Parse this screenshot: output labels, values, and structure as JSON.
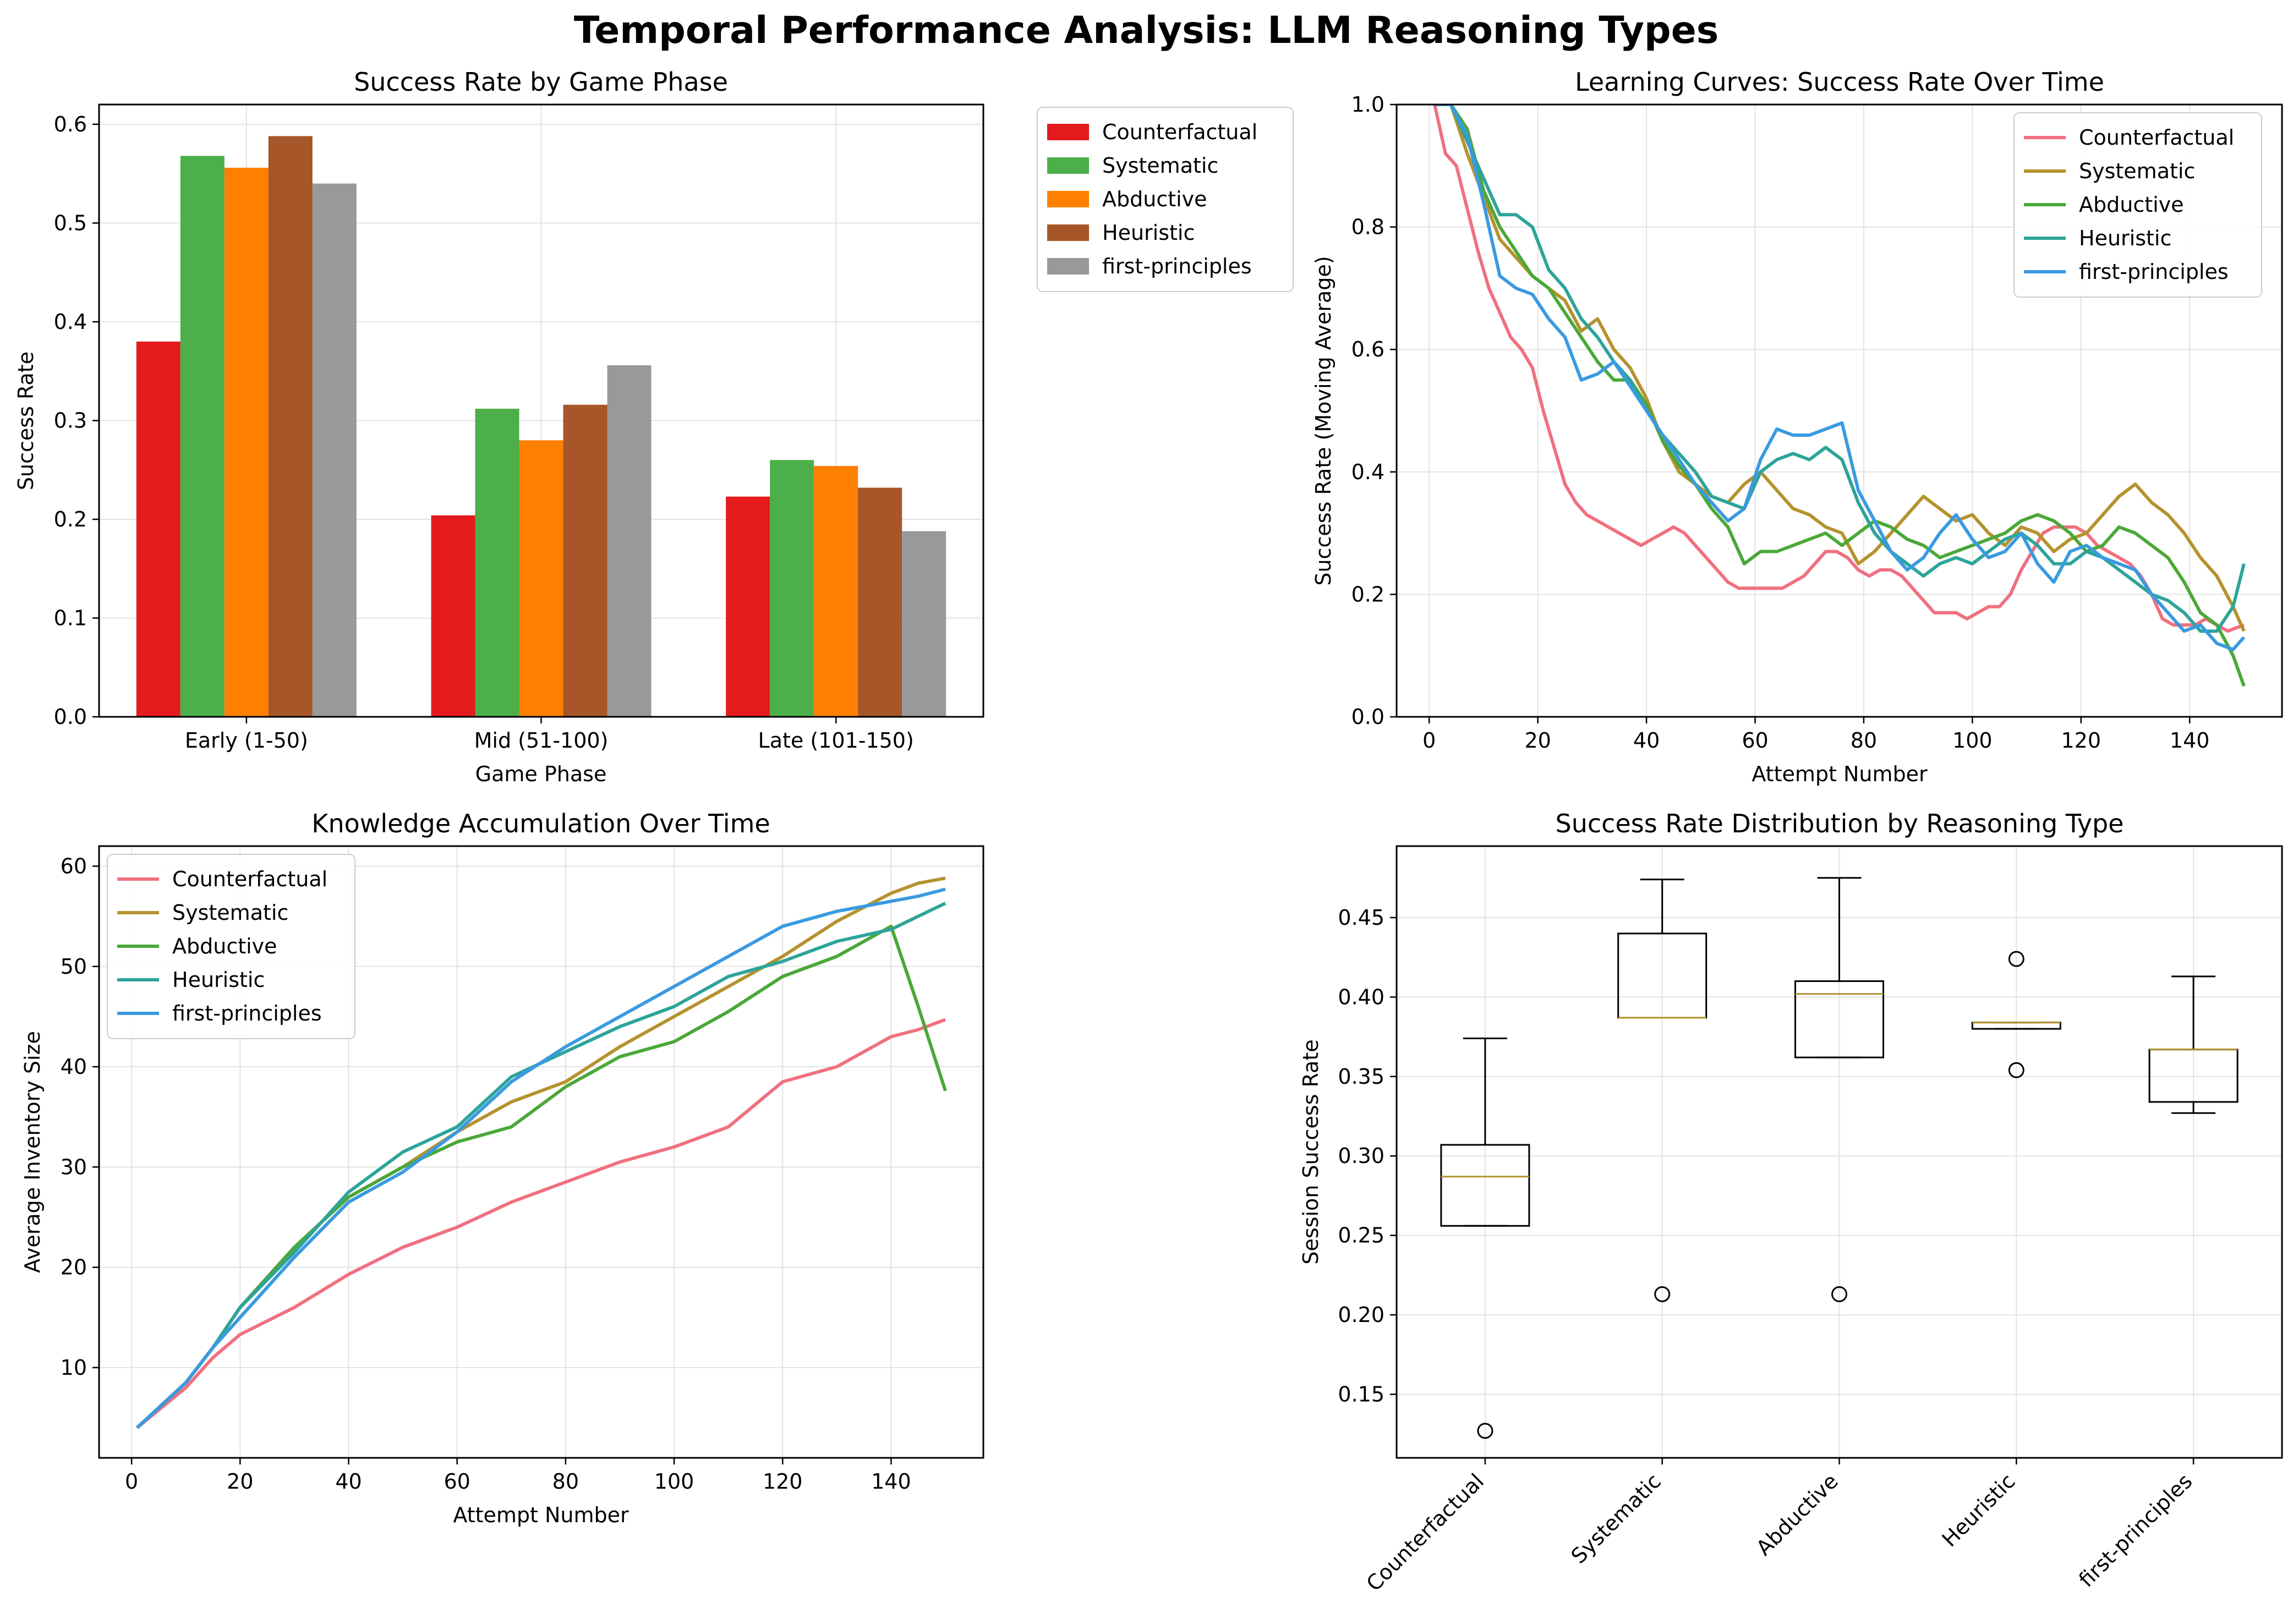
{
  "figure_title": "Temporal Performance Analysis: LLM Reasoning Types",
  "chart_data": [
    {
      "type": "bar",
      "title": "Success Rate by Game Phase",
      "xlabel": "Game Phase",
      "ylabel": "Success Rate",
      "categories": [
        "Early (1-50)",
        "Mid (51-100)",
        "Late (101-150)"
      ],
      "ylim": [
        0,
        0.62
      ],
      "yticks": [
        0.0,
        0.1,
        0.2,
        0.3,
        0.4,
        0.5,
        0.6
      ],
      "grid": true,
      "legend_position": "outside-right",
      "series": [
        {
          "name": "Counterfactual",
          "color": "#e41a1c",
          "values": [
            0.38,
            0.204,
            0.223
          ]
        },
        {
          "name": "Systematic",
          "color": "#4daf4a",
          "values": [
            0.568,
            0.312,
            0.26
          ]
        },
        {
          "name": "Abductive",
          "color": "#ff7f00",
          "values": [
            0.556,
            0.28,
            0.254
          ]
        },
        {
          "name": "Heuristic",
          "color": "#a65628",
          "values": [
            0.588,
            0.316,
            0.232
          ]
        },
        {
          "name": "first-principles",
          "color": "#999999",
          "values": [
            0.54,
            0.356,
            0.188
          ]
        }
      ]
    },
    {
      "type": "line",
      "title": "Learning Curves: Success Rate Over Time",
      "xlabel": "Attempt Number",
      "ylabel": "Success Rate (Moving Average)",
      "xlim": [
        -6,
        157
      ],
      "ylim": [
        0,
        1.0
      ],
      "xticks": [
        0,
        20,
        40,
        60,
        80,
        100,
        120,
        140
      ],
      "yticks": [
        0.0,
        0.2,
        0.4,
        0.6,
        0.8,
        1.0
      ],
      "grid": true,
      "legend_position": "top-right",
      "series": [
        {
          "name": "Counterfactual",
          "color": "#f0707f",
          "x": [
            1,
            3,
            5,
            7,
            9,
            11,
            13,
            15,
            17,
            19,
            21,
            23,
            25,
            27,
            29,
            31,
            33,
            35,
            37,
            39,
            41,
            43,
            45,
            47,
            49,
            51,
            53,
            55,
            57,
            59,
            61,
            63,
            65,
            67,
            69,
            71,
            73,
            75,
            77,
            79,
            81,
            83,
            85,
            87,
            89,
            91,
            93,
            95,
            97,
            99,
            101,
            103,
            105,
            107,
            109,
            111,
            113,
            115,
            117,
            119,
            121,
            123,
            125,
            127,
            129,
            131,
            133,
            135,
            137,
            139,
            141,
            143,
            145,
            147,
            150
          ],
          "y": [
            1.0,
            0.92,
            0.9,
            0.83,
            0.76,
            0.7,
            0.66,
            0.62,
            0.6,
            0.57,
            0.5,
            0.44,
            0.38,
            0.35,
            0.33,
            0.32,
            0.31,
            0.3,
            0.29,
            0.28,
            0.29,
            0.3,
            0.31,
            0.3,
            0.28,
            0.26,
            0.24,
            0.22,
            0.21,
            0.21,
            0.21,
            0.21,
            0.21,
            0.22,
            0.23,
            0.25,
            0.27,
            0.27,
            0.26,
            0.24,
            0.23,
            0.24,
            0.24,
            0.23,
            0.21,
            0.19,
            0.17,
            0.17,
            0.17,
            0.16,
            0.17,
            0.18,
            0.18,
            0.2,
            0.24,
            0.27,
            0.3,
            0.31,
            0.31,
            0.31,
            0.3,
            0.28,
            0.27,
            0.26,
            0.25,
            0.23,
            0.2,
            0.16,
            0.15,
            0.15,
            0.15,
            0.16,
            0.15,
            0.14,
            0.15
          ]
        },
        {
          "name": "Systematic",
          "color": "#b5922e",
          "x": [
            1,
            4,
            7,
            10,
            13,
            16,
            19,
            22,
            25,
            28,
            31,
            34,
            37,
            40,
            43,
            46,
            49,
            52,
            55,
            58,
            61,
            64,
            67,
            70,
            73,
            76,
            79,
            82,
            85,
            88,
            91,
            94,
            97,
            100,
            103,
            106,
            109,
            112,
            115,
            118,
            121,
            124,
            127,
            130,
            133,
            136,
            139,
            142,
            145,
            148,
            150
          ],
          "y": [
            1.0,
            1.0,
            0.92,
            0.85,
            0.78,
            0.75,
            0.72,
            0.7,
            0.68,
            0.63,
            0.65,
            0.6,
            0.57,
            0.52,
            0.45,
            0.4,
            0.38,
            0.36,
            0.35,
            0.38,
            0.4,
            0.37,
            0.34,
            0.33,
            0.31,
            0.3,
            0.25,
            0.27,
            0.3,
            0.33,
            0.36,
            0.34,
            0.32,
            0.33,
            0.3,
            0.28,
            0.31,
            0.3,
            0.27,
            0.29,
            0.3,
            0.33,
            0.36,
            0.38,
            0.35,
            0.33,
            0.3,
            0.26,
            0.23,
            0.18,
            0.14
          ]
        },
        {
          "name": "Abductive",
          "color": "#4aa838",
          "x": [
            1,
            4,
            7,
            10,
            13,
            16,
            19,
            22,
            25,
            28,
            31,
            34,
            37,
            40,
            43,
            46,
            49,
            52,
            55,
            58,
            61,
            64,
            67,
            70,
            73,
            76,
            79,
            82,
            85,
            88,
            91,
            94,
            97,
            100,
            103,
            106,
            109,
            112,
            115,
            118,
            121,
            124,
            127,
            130,
            133,
            136,
            139,
            142,
            145,
            148,
            150
          ],
          "y": [
            1.0,
            1.0,
            0.96,
            0.86,
            0.8,
            0.76,
            0.72,
            0.7,
            0.66,
            0.62,
            0.58,
            0.55,
            0.55,
            0.51,
            0.45,
            0.41,
            0.38,
            0.34,
            0.31,
            0.25,
            0.27,
            0.27,
            0.28,
            0.29,
            0.3,
            0.28,
            0.3,
            0.32,
            0.31,
            0.29,
            0.28,
            0.26,
            0.27,
            0.28,
            0.29,
            0.3,
            0.32,
            0.33,
            0.32,
            0.3,
            0.27,
            0.28,
            0.31,
            0.3,
            0.28,
            0.26,
            0.22,
            0.17,
            0.15,
            0.1,
            0.05
          ]
        },
        {
          "name": "Heuristic",
          "color": "#2da49a",
          "x": [
            1,
            4,
            7,
            10,
            13,
            16,
            19,
            22,
            25,
            28,
            31,
            34,
            37,
            40,
            43,
            46,
            49,
            52,
            55,
            58,
            61,
            64,
            67,
            70,
            73,
            76,
            79,
            82,
            85,
            88,
            91,
            94,
            97,
            100,
            103,
            106,
            109,
            112,
            115,
            118,
            121,
            124,
            127,
            130,
            133,
            136,
            139,
            142,
            145,
            148,
            150
          ],
          "y": [
            1.0,
            1.0,
            0.94,
            0.88,
            0.82,
            0.82,
            0.8,
            0.73,
            0.7,
            0.65,
            0.62,
            0.58,
            0.55,
            0.5,
            0.46,
            0.43,
            0.4,
            0.36,
            0.35,
            0.34,
            0.4,
            0.42,
            0.43,
            0.42,
            0.44,
            0.42,
            0.35,
            0.3,
            0.27,
            0.25,
            0.23,
            0.25,
            0.26,
            0.25,
            0.27,
            0.29,
            0.3,
            0.28,
            0.25,
            0.25,
            0.27,
            0.26,
            0.24,
            0.22,
            0.2,
            0.19,
            0.17,
            0.14,
            0.14,
            0.18,
            0.25
          ]
        },
        {
          "name": "first-principles",
          "color": "#3a9ae0",
          "x": [
            1,
            4,
            7,
            10,
            13,
            16,
            19,
            22,
            25,
            28,
            31,
            34,
            37,
            40,
            43,
            46,
            49,
            52,
            55,
            58,
            61,
            64,
            67,
            70,
            73,
            76,
            79,
            82,
            85,
            88,
            91,
            94,
            97,
            100,
            103,
            106,
            109,
            112,
            115,
            118,
            121,
            124,
            127,
            130,
            133,
            136,
            139,
            142,
            145,
            148,
            150
          ],
          "y": [
            1.0,
            1.0,
            0.95,
            0.84,
            0.72,
            0.7,
            0.69,
            0.65,
            0.62,
            0.55,
            0.56,
            0.58,
            0.54,
            0.5,
            0.46,
            0.42,
            0.38,
            0.35,
            0.32,
            0.34,
            0.42,
            0.47,
            0.46,
            0.46,
            0.47,
            0.48,
            0.37,
            0.32,
            0.27,
            0.24,
            0.26,
            0.3,
            0.33,
            0.29,
            0.26,
            0.27,
            0.3,
            0.25,
            0.22,
            0.27,
            0.28,
            0.26,
            0.25,
            0.24,
            0.2,
            0.17,
            0.14,
            0.15,
            0.12,
            0.11,
            0.13
          ]
        }
      ]
    },
    {
      "type": "line",
      "title": "Knowledge Accumulation Over Time",
      "xlabel": "Attempt Number",
      "ylabel": "Average Inventory Size",
      "xlim": [
        -6,
        157
      ],
      "ylim": [
        1,
        62
      ],
      "xticks": [
        0,
        20,
        40,
        60,
        80,
        100,
        120,
        140
      ],
      "yticks": [
        10,
        20,
        30,
        40,
        50,
        60
      ],
      "grid": true,
      "legend_position": "top-left",
      "series": [
        {
          "name": "Counterfactual",
          "color": "#f0707f",
          "x": [
            1,
            10,
            15,
            20,
            30,
            40,
            50,
            60,
            70,
            80,
            90,
            100,
            110,
            120,
            130,
            140,
            145,
            150
          ],
          "y": [
            4,
            8,
            11,
            13.3,
            16,
            19.3,
            22,
            24,
            26.5,
            28.5,
            30.5,
            32,
            34,
            38.5,
            40,
            43,
            43.7,
            44.7
          ]
        },
        {
          "name": "Systematic",
          "color": "#b5922e",
          "x": [
            1,
            10,
            15,
            20,
            30,
            40,
            50,
            60,
            70,
            80,
            90,
            100,
            110,
            120,
            130,
            140,
            145,
            150
          ],
          "y": [
            4,
            8.5,
            12,
            16,
            22,
            27,
            30,
            33.5,
            36.5,
            38.5,
            42,
            45,
            48,
            51,
            54.5,
            57.3,
            58.3,
            58.8
          ]
        },
        {
          "name": "Abductive",
          "color": "#4aa838",
          "x": [
            1,
            10,
            15,
            20,
            30,
            40,
            50,
            60,
            70,
            80,
            90,
            100,
            110,
            120,
            130,
            140,
            145,
            150
          ],
          "y": [
            4,
            8.5,
            12,
            16,
            22,
            27,
            30,
            32.5,
            34,
            38,
            41,
            42.5,
            45.5,
            49,
            51,
            54,
            46,
            37.6
          ]
        },
        {
          "name": "Heuristic",
          "color": "#2da49a",
          "x": [
            1,
            10,
            15,
            20,
            30,
            40,
            50,
            60,
            70,
            80,
            90,
            100,
            110,
            120,
            130,
            140,
            145,
            150
          ],
          "y": [
            4,
            8.5,
            12,
            16,
            21.5,
            27.5,
            31.5,
            34,
            39,
            41.5,
            44,
            46,
            49,
            50.5,
            52.5,
            53.7,
            55,
            56.3
          ]
        },
        {
          "name": "first-principles",
          "color": "#3a9ae0",
          "x": [
            1,
            10,
            15,
            20,
            30,
            40,
            50,
            60,
            70,
            80,
            90,
            100,
            110,
            120,
            130,
            140,
            145,
            150
          ],
          "y": [
            4,
            8.5,
            12,
            15,
            21,
            26.5,
            29.5,
            33.5,
            38.5,
            42,
            45,
            48,
            51,
            54,
            55.5,
            56.5,
            57,
            57.7
          ]
        }
      ]
    },
    {
      "type": "box",
      "title": "Success Rate Distribution by Reasoning Type",
      "xlabel": "",
      "ylabel": "Session Success Rate",
      "categories": [
        "Counterfactual",
        "Systematic",
        "Abductive",
        "Heuristic",
        "first-principles"
      ],
      "ylim": [
        0.11,
        0.495
      ],
      "yticks": [
        0.15,
        0.2,
        0.25,
        0.3,
        0.35,
        0.4,
        0.45
      ],
      "grid": true,
      "boxes": [
        {
          "whislo": 0.256,
          "q1": 0.256,
          "med": 0.287,
          "q3": 0.307,
          "whishi": 0.374,
          "fliers": [
            0.127
          ]
        },
        {
          "whislo": 0.387,
          "q1": 0.387,
          "med": 0.387,
          "q3": 0.44,
          "whishi": 0.474,
          "fliers": [
            0.213
          ]
        },
        {
          "whislo": 0.362,
          "q1": 0.362,
          "med": 0.402,
          "q3": 0.41,
          "whishi": 0.475,
          "fliers": [
            0.213
          ]
        },
        {
          "whislo": 0.38,
          "q1": 0.38,
          "med": 0.384,
          "q3": 0.384,
          "whishi": 0.384,
          "fliers": [
            0.424,
            0.354
          ]
        },
        {
          "whislo": 0.327,
          "q1": 0.334,
          "med": 0.367,
          "q3": 0.367,
          "whishi": 0.413,
          "fliers": []
        }
      ],
      "median_color": "#b5922e"
    }
  ]
}
